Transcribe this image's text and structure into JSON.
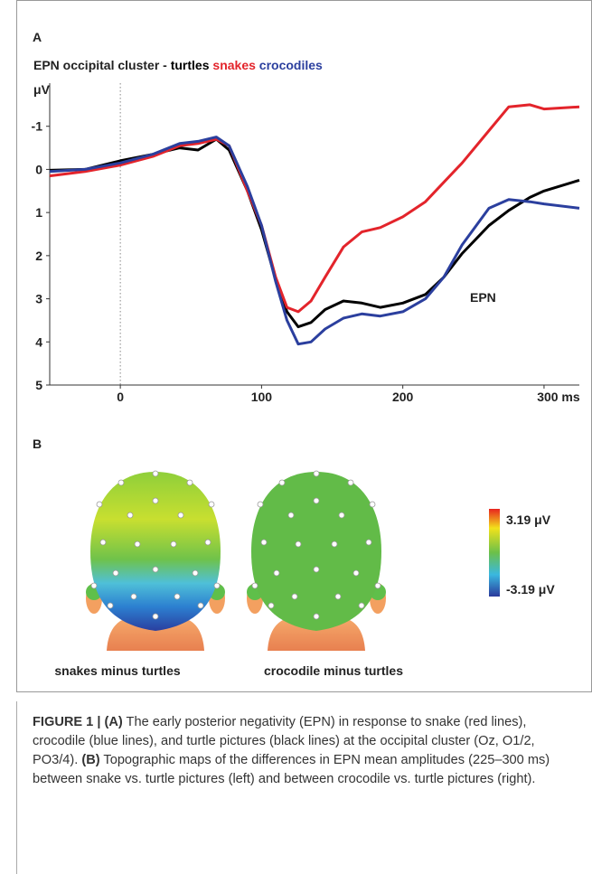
{
  "panel_a": {
    "label": "A"
  },
  "chart_data": {
    "type": "line",
    "title": "EPN occipital cluster -",
    "y_label": "μV",
    "annotation": "EPN",
    "x": [
      -50,
      -25,
      0,
      23,
      42,
      55,
      68,
      77,
      90,
      100,
      110,
      118,
      126,
      135,
      145,
      158,
      171,
      184,
      200,
      216,
      229,
      242,
      261,
      275,
      290,
      300,
      325
    ],
    "series": [
      {
        "name": "turtles",
        "color": "#000000",
        "values": [
          0.02,
          0,
          -0.2,
          -0.35,
          -0.5,
          -0.45,
          -0.7,
          -0.45,
          0.5,
          1.4,
          2.55,
          3.3,
          3.65,
          3.55,
          3.25,
          3.05,
          3.1,
          3.2,
          3.1,
          2.9,
          2.5,
          1.95,
          1.3,
          0.95,
          0.65,
          0.5,
          0.25
        ]
      },
      {
        "name": "snakes",
        "color": "#e3242b",
        "values": [
          0.15,
          0.05,
          -0.1,
          -0.3,
          -0.55,
          -0.6,
          -0.7,
          -0.55,
          0.5,
          1.3,
          2.5,
          3.2,
          3.3,
          3.05,
          2.5,
          1.8,
          1.45,
          1.35,
          1.1,
          0.75,
          0.3,
          -0.15,
          -0.9,
          -1.45,
          -1.5,
          -1.4,
          -1.45
        ]
      },
      {
        "name": "crocodiles",
        "color": "#2b3f9e",
        "values": [
          0.05,
          0,
          -0.15,
          -0.35,
          -0.6,
          -0.65,
          -0.75,
          -0.55,
          0.4,
          1.3,
          2.6,
          3.5,
          4.05,
          4.0,
          3.7,
          3.45,
          3.35,
          3.4,
          3.3,
          3.0,
          2.5,
          1.75,
          0.9,
          0.7,
          0.75,
          0.8,
          0.9
        ]
      }
    ],
    "xlim": [
      -50,
      325
    ],
    "xticks": [
      0,
      100,
      200,
      {
        "value": 300,
        "label": "300 ms"
      }
    ],
    "ylim": [
      -2,
      5
    ],
    "y_inverted": true,
    "yticks": [
      -1,
      0,
      1,
      2,
      3,
      4,
      5
    ],
    "onset_line": 0
  },
  "panel_b": {
    "label": "B",
    "maps": [
      "snakes minus turtles",
      "crocodile minus turtles"
    ],
    "colorbar": {
      "max_label": "3.19 μV",
      "min_label": "-3.19 μV"
    }
  },
  "caption": [
    {
      "text": "FIGURE 1 | (A)",
      "bold": true
    },
    {
      "text": " The early posterior negativity (EPN) in response to snake (red lines), crocodile (blue lines), and turtle pictures (black lines) at the occipital cluster (Oz, O1/2, PO3/4). ",
      "bold": false
    },
    {
      "text": "(B)",
      "bold": true
    },
    {
      "text": " Topographic maps of the differences in EPN mean amplitudes (225–300 ms) between snake vs. turtle pictures (left) and between crocodile vs. turtle pictures (right).",
      "bold": false
    }
  ]
}
